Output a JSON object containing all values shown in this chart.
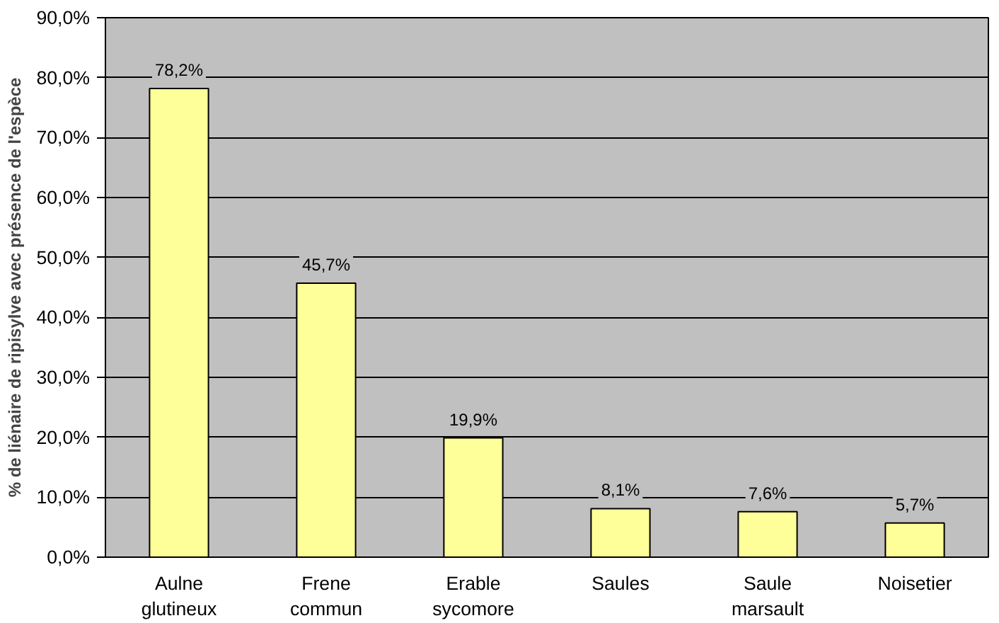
{
  "chart_data": {
    "type": "bar",
    "ylabel": "% de liénaire de ripisylve avec présence de l'espèce",
    "categories": [
      "Aulne\nglutineux",
      "Frene\ncommun",
      "Erable\nsycomore",
      "Saules",
      "Saule\nmarsault",
      "Noisetier"
    ],
    "values": [
      78.2,
      45.7,
      19.9,
      8.1,
      7.6,
      5.7
    ],
    "value_labels": [
      "78,2%",
      "45,7%",
      "19,9%",
      "8,1%",
      "7,6%",
      "5,7%"
    ],
    "color": "#ffff99",
    "ylim": [
      0,
      90
    ],
    "yticks": [
      {
        "value": 0,
        "label": "0,0%"
      },
      {
        "value": 10,
        "label": "10,0%"
      },
      {
        "value": 20,
        "label": "20,0%"
      },
      {
        "value": 30,
        "label": "30,0%"
      },
      {
        "value": 40,
        "label": "40,0%"
      },
      {
        "value": 50,
        "label": "50,0%"
      },
      {
        "value": 60,
        "label": "60,0%"
      },
      {
        "value": 70,
        "label": "70,0%"
      },
      {
        "value": 80,
        "label": "80,0%"
      },
      {
        "value": 90,
        "label": "90,0%"
      }
    ],
    "grid": "y"
  }
}
